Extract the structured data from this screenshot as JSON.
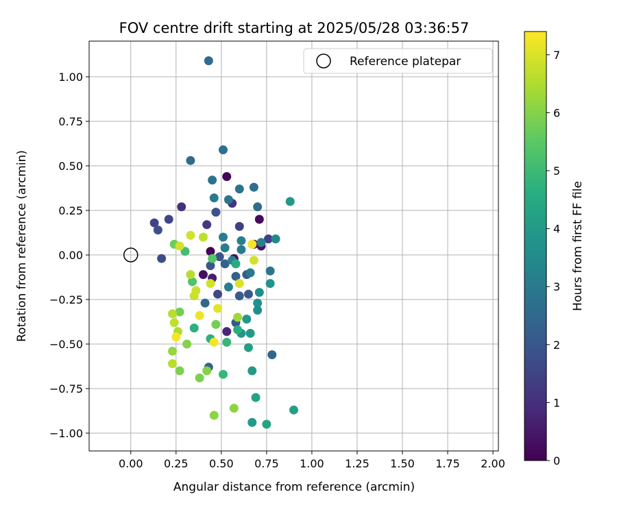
{
  "chart_data": {
    "type": "scatter",
    "title": "FOV centre drift starting at 2025/05/28 03:36:57",
    "xlabel": "Angular distance from reference (arcmin)",
    "ylabel": "Rotation from reference (arcmin)",
    "xlim": [
      -0.23,
      2.03
    ],
    "ylim": [
      -1.1,
      1.2
    ],
    "xticks": [
      0.0,
      0.25,
      0.5,
      0.75,
      1.0,
      1.25,
      1.5,
      1.75,
      2.0
    ],
    "xtick_labels": [
      "0.00",
      "0.25",
      "0.50",
      "0.75",
      "1.00",
      "1.25",
      "1.50",
      "1.75",
      "2.00"
    ],
    "yticks": [
      -1.0,
      -0.75,
      -0.5,
      -0.25,
      0.0,
      0.25,
      0.5,
      0.75,
      1.0
    ],
    "ytick_labels": [
      "−1.00",
      "−0.75",
      "−0.50",
      "−0.25",
      "0.00",
      "0.25",
      "0.50",
      "0.75",
      "1.00"
    ],
    "grid": true,
    "legend": {
      "placement": "top-right",
      "entries": [
        "Reference platepar"
      ]
    },
    "reference_point": {
      "x": 0.0,
      "y": 0.0,
      "label": "Reference platepar"
    },
    "colorbar": {
      "label": "Hours from first FF file",
      "colormap": "viridis",
      "range": [
        0,
        7.4
      ],
      "ticks": [
        0,
        1,
        2,
        3,
        4,
        5,
        6,
        7
      ],
      "tick_labels": [
        "0",
        "1",
        "2",
        "3",
        "4",
        "5",
        "6",
        "7"
      ]
    },
    "points": [
      {
        "x": 0.53,
        "y": 0.44,
        "c": 0.1
      },
      {
        "x": 0.71,
        "y": 0.2,
        "c": 0.2
      },
      {
        "x": 0.44,
        "y": 0.02,
        "c": 0.1
      },
      {
        "x": 0.4,
        "y": -0.11,
        "c": 0.3
      },
      {
        "x": 0.45,
        "y": -0.13,
        "c": 0.6
      },
      {
        "x": 0.57,
        "y": -0.02,
        "c": 0.3
      },
      {
        "x": 0.68,
        "y": 0.06,
        "c": 0.2
      },
      {
        "x": 0.72,
        "y": 0.05,
        "c": 0.4
      },
      {
        "x": 0.53,
        "y": -0.43,
        "c": 0.8
      },
      {
        "x": 0.28,
        "y": 0.27,
        "c": 1.0
      },
      {
        "x": 0.56,
        "y": 0.29,
        "c": 1.1
      },
      {
        "x": 0.42,
        "y": 0.17,
        "c": 1.2
      },
      {
        "x": 0.6,
        "y": 0.16,
        "c": 1.4
      },
      {
        "x": 0.13,
        "y": 0.18,
        "c": 1.5
      },
      {
        "x": 0.21,
        "y": 0.2,
        "c": 1.6
      },
      {
        "x": 0.17,
        "y": -0.02,
        "c": 1.7
      },
      {
        "x": 0.15,
        "y": 0.14,
        "c": 1.8
      },
      {
        "x": 0.76,
        "y": 0.09,
        "c": 1.4
      },
      {
        "x": 0.48,
        "y": -0.22,
        "c": 1.6
      },
      {
        "x": 0.47,
        "y": 0.24,
        "c": 1.9
      },
      {
        "x": 0.49,
        "y": -0.01,
        "c": 1.9
      },
      {
        "x": 0.44,
        "y": -0.06,
        "c": 2.0
      },
      {
        "x": 0.58,
        "y": -0.38,
        "c": 2.0
      },
      {
        "x": 0.6,
        "y": -0.23,
        "c": 2.1
      },
      {
        "x": 0.64,
        "y": -0.11,
        "c": 2.2
      },
      {
        "x": 0.65,
        "y": -0.22,
        "c": 2.0
      },
      {
        "x": 0.58,
        "y": -0.12,
        "c": 2.2
      },
      {
        "x": 0.52,
        "y": -0.05,
        "c": 2.3
      },
      {
        "x": 0.78,
        "y": -0.56,
        "c": 2.5
      },
      {
        "x": 0.41,
        "y": -0.27,
        "c": 2.5
      },
      {
        "x": 0.43,
        "y": -0.63,
        "c": 2.4
      },
      {
        "x": 0.43,
        "y": 1.09,
        "c": 2.6
      },
      {
        "x": 0.51,
        "y": 0.59,
        "c": 2.7
      },
      {
        "x": 0.33,
        "y": 0.53,
        "c": 2.6
      },
      {
        "x": 0.45,
        "y": 0.42,
        "c": 2.8
      },
      {
        "x": 0.6,
        "y": 0.37,
        "c": 2.8
      },
      {
        "x": 0.68,
        "y": 0.38,
        "c": 2.7
      },
      {
        "x": 0.54,
        "y": 0.31,
        "c": 2.9
      },
      {
        "x": 0.46,
        "y": 0.32,
        "c": 3.0
      },
      {
        "x": 0.7,
        "y": 0.27,
        "c": 2.6
      },
      {
        "x": 0.51,
        "y": 0.1,
        "c": 3.1
      },
      {
        "x": 0.52,
        "y": 0.04,
        "c": 3.1
      },
      {
        "x": 0.61,
        "y": 0.08,
        "c": 3.2
      },
      {
        "x": 0.61,
        "y": 0.03,
        "c": 3.0
      },
      {
        "x": 0.72,
        "y": 0.07,
        "c": 3.2
      },
      {
        "x": 0.66,
        "y": -0.1,
        "c": 3.0
      },
      {
        "x": 0.77,
        "y": -0.09,
        "c": 2.9
      },
      {
        "x": 0.54,
        "y": -0.18,
        "c": 3.2
      },
      {
        "x": 0.56,
        "y": -0.03,
        "c": 3.3
      },
      {
        "x": 0.8,
        "y": 0.09,
        "c": 3.5
      },
      {
        "x": 0.88,
        "y": 0.3,
        "c": 3.9
      },
      {
        "x": 0.71,
        "y": -0.21,
        "c": 3.6
      },
      {
        "x": 0.7,
        "y": -0.27,
        "c": 3.7
      },
      {
        "x": 0.7,
        "y": -0.31,
        "c": 3.6
      },
      {
        "x": 0.77,
        "y": -0.16,
        "c": 3.8
      },
      {
        "x": 0.64,
        "y": -0.36,
        "c": 3.9
      },
      {
        "x": 0.61,
        "y": -0.44,
        "c": 3.8
      },
      {
        "x": 0.66,
        "y": -0.44,
        "c": 4.0
      },
      {
        "x": 0.65,
        "y": -0.52,
        "c": 4.1
      },
      {
        "x": 0.67,
        "y": -0.65,
        "c": 4.0
      },
      {
        "x": 0.69,
        "y": -0.8,
        "c": 4.2
      },
      {
        "x": 0.67,
        "y": -0.94,
        "c": 4.0
      },
      {
        "x": 0.75,
        "y": -0.95,
        "c": 4.3
      },
      {
        "x": 0.9,
        "y": -0.87,
        "c": 4.1
      },
      {
        "x": 0.58,
        "y": -0.05,
        "c": 4.6
      },
      {
        "x": 0.59,
        "y": -0.42,
        "c": 4.6
      },
      {
        "x": 0.35,
        "y": -0.41,
        "c": 4.7
      },
      {
        "x": 0.44,
        "y": -0.47,
        "c": 4.7
      },
      {
        "x": 0.51,
        "y": -0.67,
        "c": 4.9
      },
      {
        "x": 0.53,
        "y": -0.49,
        "c": 4.9
      },
      {
        "x": 0.3,
        "y": 0.02,
        "c": 5.1
      },
      {
        "x": 0.34,
        "y": -0.15,
        "c": 5.3
      },
      {
        "x": 0.45,
        "y": -0.02,
        "c": 5.4
      },
      {
        "x": 0.47,
        "y": -0.39,
        "c": 5.8
      },
      {
        "x": 0.24,
        "y": 0.06,
        "c": 5.7
      },
      {
        "x": 0.27,
        "y": -0.32,
        "c": 5.8
      },
      {
        "x": 0.31,
        "y": -0.5,
        "c": 6.0
      },
      {
        "x": 0.27,
        "y": -0.65,
        "c": 5.9
      },
      {
        "x": 0.38,
        "y": -0.69,
        "c": 5.9
      },
      {
        "x": 0.42,
        "y": -0.65,
        "c": 6.0
      },
      {
        "x": 0.46,
        "y": -0.9,
        "c": 6.1
      },
      {
        "x": 0.57,
        "y": -0.86,
        "c": 6.1
      },
      {
        "x": 0.59,
        "y": -0.35,
        "c": 6.3
      },
      {
        "x": 0.23,
        "y": -0.54,
        "c": 6.2
      },
      {
        "x": 0.23,
        "y": -0.61,
        "c": 6.6
      },
      {
        "x": 0.26,
        "y": -0.43,
        "c": 6.5
      },
      {
        "x": 0.24,
        "y": -0.38,
        "c": 6.7
      },
      {
        "x": 0.23,
        "y": -0.33,
        "c": 6.6
      },
      {
        "x": 0.36,
        "y": -0.2,
        "c": 6.8
      },
      {
        "x": 0.35,
        "y": -0.23,
        "c": 6.8
      },
      {
        "x": 0.33,
        "y": -0.11,
        "c": 6.6
      },
      {
        "x": 0.33,
        "y": 0.11,
        "c": 6.9
      },
      {
        "x": 0.4,
        "y": 0.1,
        "c": 6.7
      },
      {
        "x": 0.27,
        "y": 0.05,
        "c": 6.9
      },
      {
        "x": 0.44,
        "y": -0.16,
        "c": 6.9
      },
      {
        "x": 0.6,
        "y": -0.16,
        "c": 7.0
      },
      {
        "x": 0.68,
        "y": -0.03,
        "c": 6.9
      },
      {
        "x": 0.48,
        "y": -0.3,
        "c": 7.1
      },
      {
        "x": 0.38,
        "y": -0.34,
        "c": 7.2
      },
      {
        "x": 0.25,
        "y": -0.46,
        "c": 7.3
      },
      {
        "x": 0.46,
        "y": -0.49,
        "c": 7.3
      },
      {
        "x": 0.67,
        "y": 0.06,
        "c": 7.3
      }
    ]
  }
}
